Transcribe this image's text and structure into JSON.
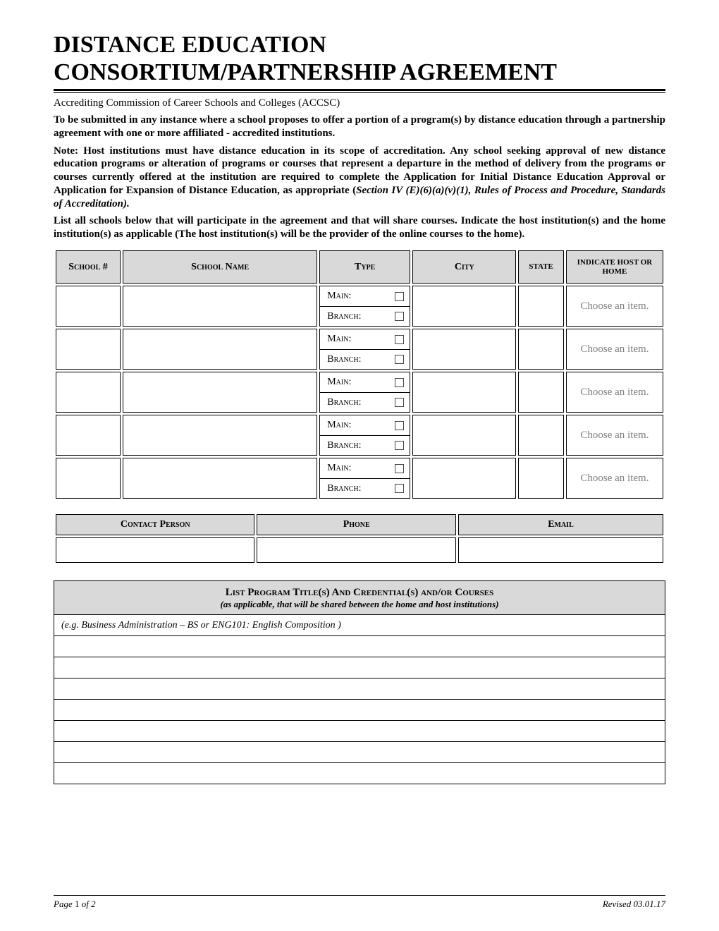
{
  "title": "DISTANCE EDUCATION CONSORTIUM/PARTNERSHIP AGREEMENT",
  "subtitle": "Accrediting Commission of Career Schools and Colleges (ACCSC)",
  "intro_bold": "To be submitted in any instance where a school proposes to offer a portion of a program(s) by distance education through a partnership agreement with one or more affiliated - accredited institutions.",
  "note_bold_lead": "Note: Host institutions must have distance education in its scope of accreditation. Any school seeking approval of new distance education programs or alteration of programs or courses that represent a departure in the method of delivery from the programs or courses currently offered at the institution are required to complete the Application for Initial Distance Education Approval or Application for Expansion of Distance Education, as appropriate (",
  "note_italic_cite": "Section IV (E)(6)(a)(v)(1), Rules of Process and Procedure, Standards of Accreditation).",
  "list_all_intro": "List all schools  below that will participate in the agreement and that will share courses. Indicate the host institution(s) and the home institution(s) as applicable (The host institution(s) will be the provider of the online courses to the home).",
  "schools_table": {
    "headers": {
      "school_num": "School #",
      "school_name": "School Name",
      "type": "Type",
      "city": "City",
      "state": "State",
      "indicate": "INDICATE HOST OR HOME"
    },
    "type_labels": {
      "main": "Main:",
      "branch": "Branch:"
    },
    "choose_text": "Choose an item.",
    "row_count": 5
  },
  "contact_table": {
    "headers": {
      "person": "Contact Person",
      "phone": "Phone",
      "email": "Email"
    }
  },
  "programs_table": {
    "title": "List Program Title(s) And Credential(s) and/or Courses",
    "subtitle": "(as applicable, that will be shared between the home and host institutions)",
    "example": "(e.g. Business Administration – BS or ENG101: English Composition )",
    "blank_rows": 7
  },
  "footer": {
    "page_label_prefix": "Page ",
    "page_num": "1",
    "page_label_suffix": " of 2",
    "revised": "Revised 03.01.17"
  },
  "colors": {
    "header_bg": "#d9d9d9",
    "border": "#000000",
    "placeholder": "#808080",
    "background": "#ffffff",
    "text": "#000000"
  }
}
